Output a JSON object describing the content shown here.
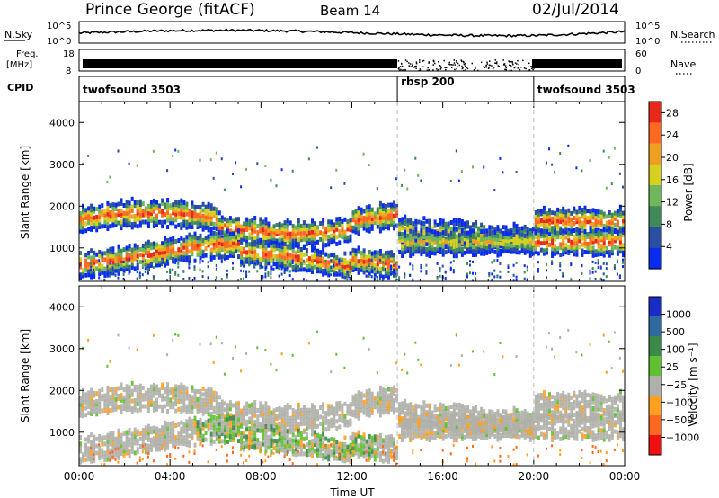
{
  "header": {
    "station": "Prince George (fitACF)",
    "beam": "Beam 14",
    "date": "02/Jul/2014"
  },
  "top_panels": {
    "nsky_label": "N.Sky",
    "nsky_ticks": [
      "10^5",
      "10^0"
    ],
    "nsearch_label": "N.Search",
    "nsearch_ticks": [
      "10^5",
      "10^0"
    ],
    "freq_label_1": "Freq.",
    "freq_label_2": "[MHz]",
    "freq_ticks": [
      "18",
      "8"
    ],
    "nave_label": "Nave",
    "nave_ticks": [
      "60",
      "0"
    ],
    "cpid_label": "CPID",
    "cpid_segments": [
      {
        "label": "twofsound 3503",
        "start_h": 0,
        "end_h": 14
      },
      {
        "label": "rbsp 200",
        "start_h": 14,
        "end_h": 20
      },
      {
        "label": "twofsound 3503",
        "start_h": 20,
        "end_h": 24
      }
    ]
  },
  "chart_data": [
    {
      "type": "heatmap",
      "panel": "power",
      "ylabel": "Slant Range [km]",
      "ylim": [
        200,
        4500
      ],
      "yticks": [
        "1000",
        "2000",
        "3000",
        "4000"
      ],
      "xlim": [
        0,
        24
      ],
      "colorbar_label": "Power [dB]",
      "colorbar_ticks": [
        "4",
        "8",
        "12",
        "16",
        "20",
        "24",
        "28"
      ],
      "colorbar_range": [
        0,
        30
      ],
      "colors": [
        "#0a2cf0",
        "#2a4fa0",
        "#3f8a58",
        "#6fb75a",
        "#d8d020",
        "#f0a020",
        "#ff6820",
        "#e8281a"
      ]
    },
    {
      "type": "heatmap",
      "panel": "velocity",
      "ylabel": "Slant Range [km]",
      "ylim": [
        200,
        4500
      ],
      "yticks": [
        "1000",
        "2000",
        "3000",
        "4000"
      ],
      "xlim": [
        0,
        24
      ],
      "xlabel": "Time UT",
      "xticks": [
        "00:00",
        "04:00",
        "08:00",
        "12:00",
        "16:00",
        "20:00",
        "00:00"
      ],
      "colorbar_label": "Velocity [m s⁻¹]",
      "colorbar_ticks": [
        "1000",
        "500",
        "100",
        "25",
        "−25",
        "−100",
        "−500",
        "−1000"
      ],
      "colors": [
        "#1a2cc8",
        "#2e6aa0",
        "#3a8a4a",
        "#5fc030",
        "#b0b0aa",
        "#ffa020",
        "#ff6820",
        "#f01010"
      ]
    }
  ]
}
